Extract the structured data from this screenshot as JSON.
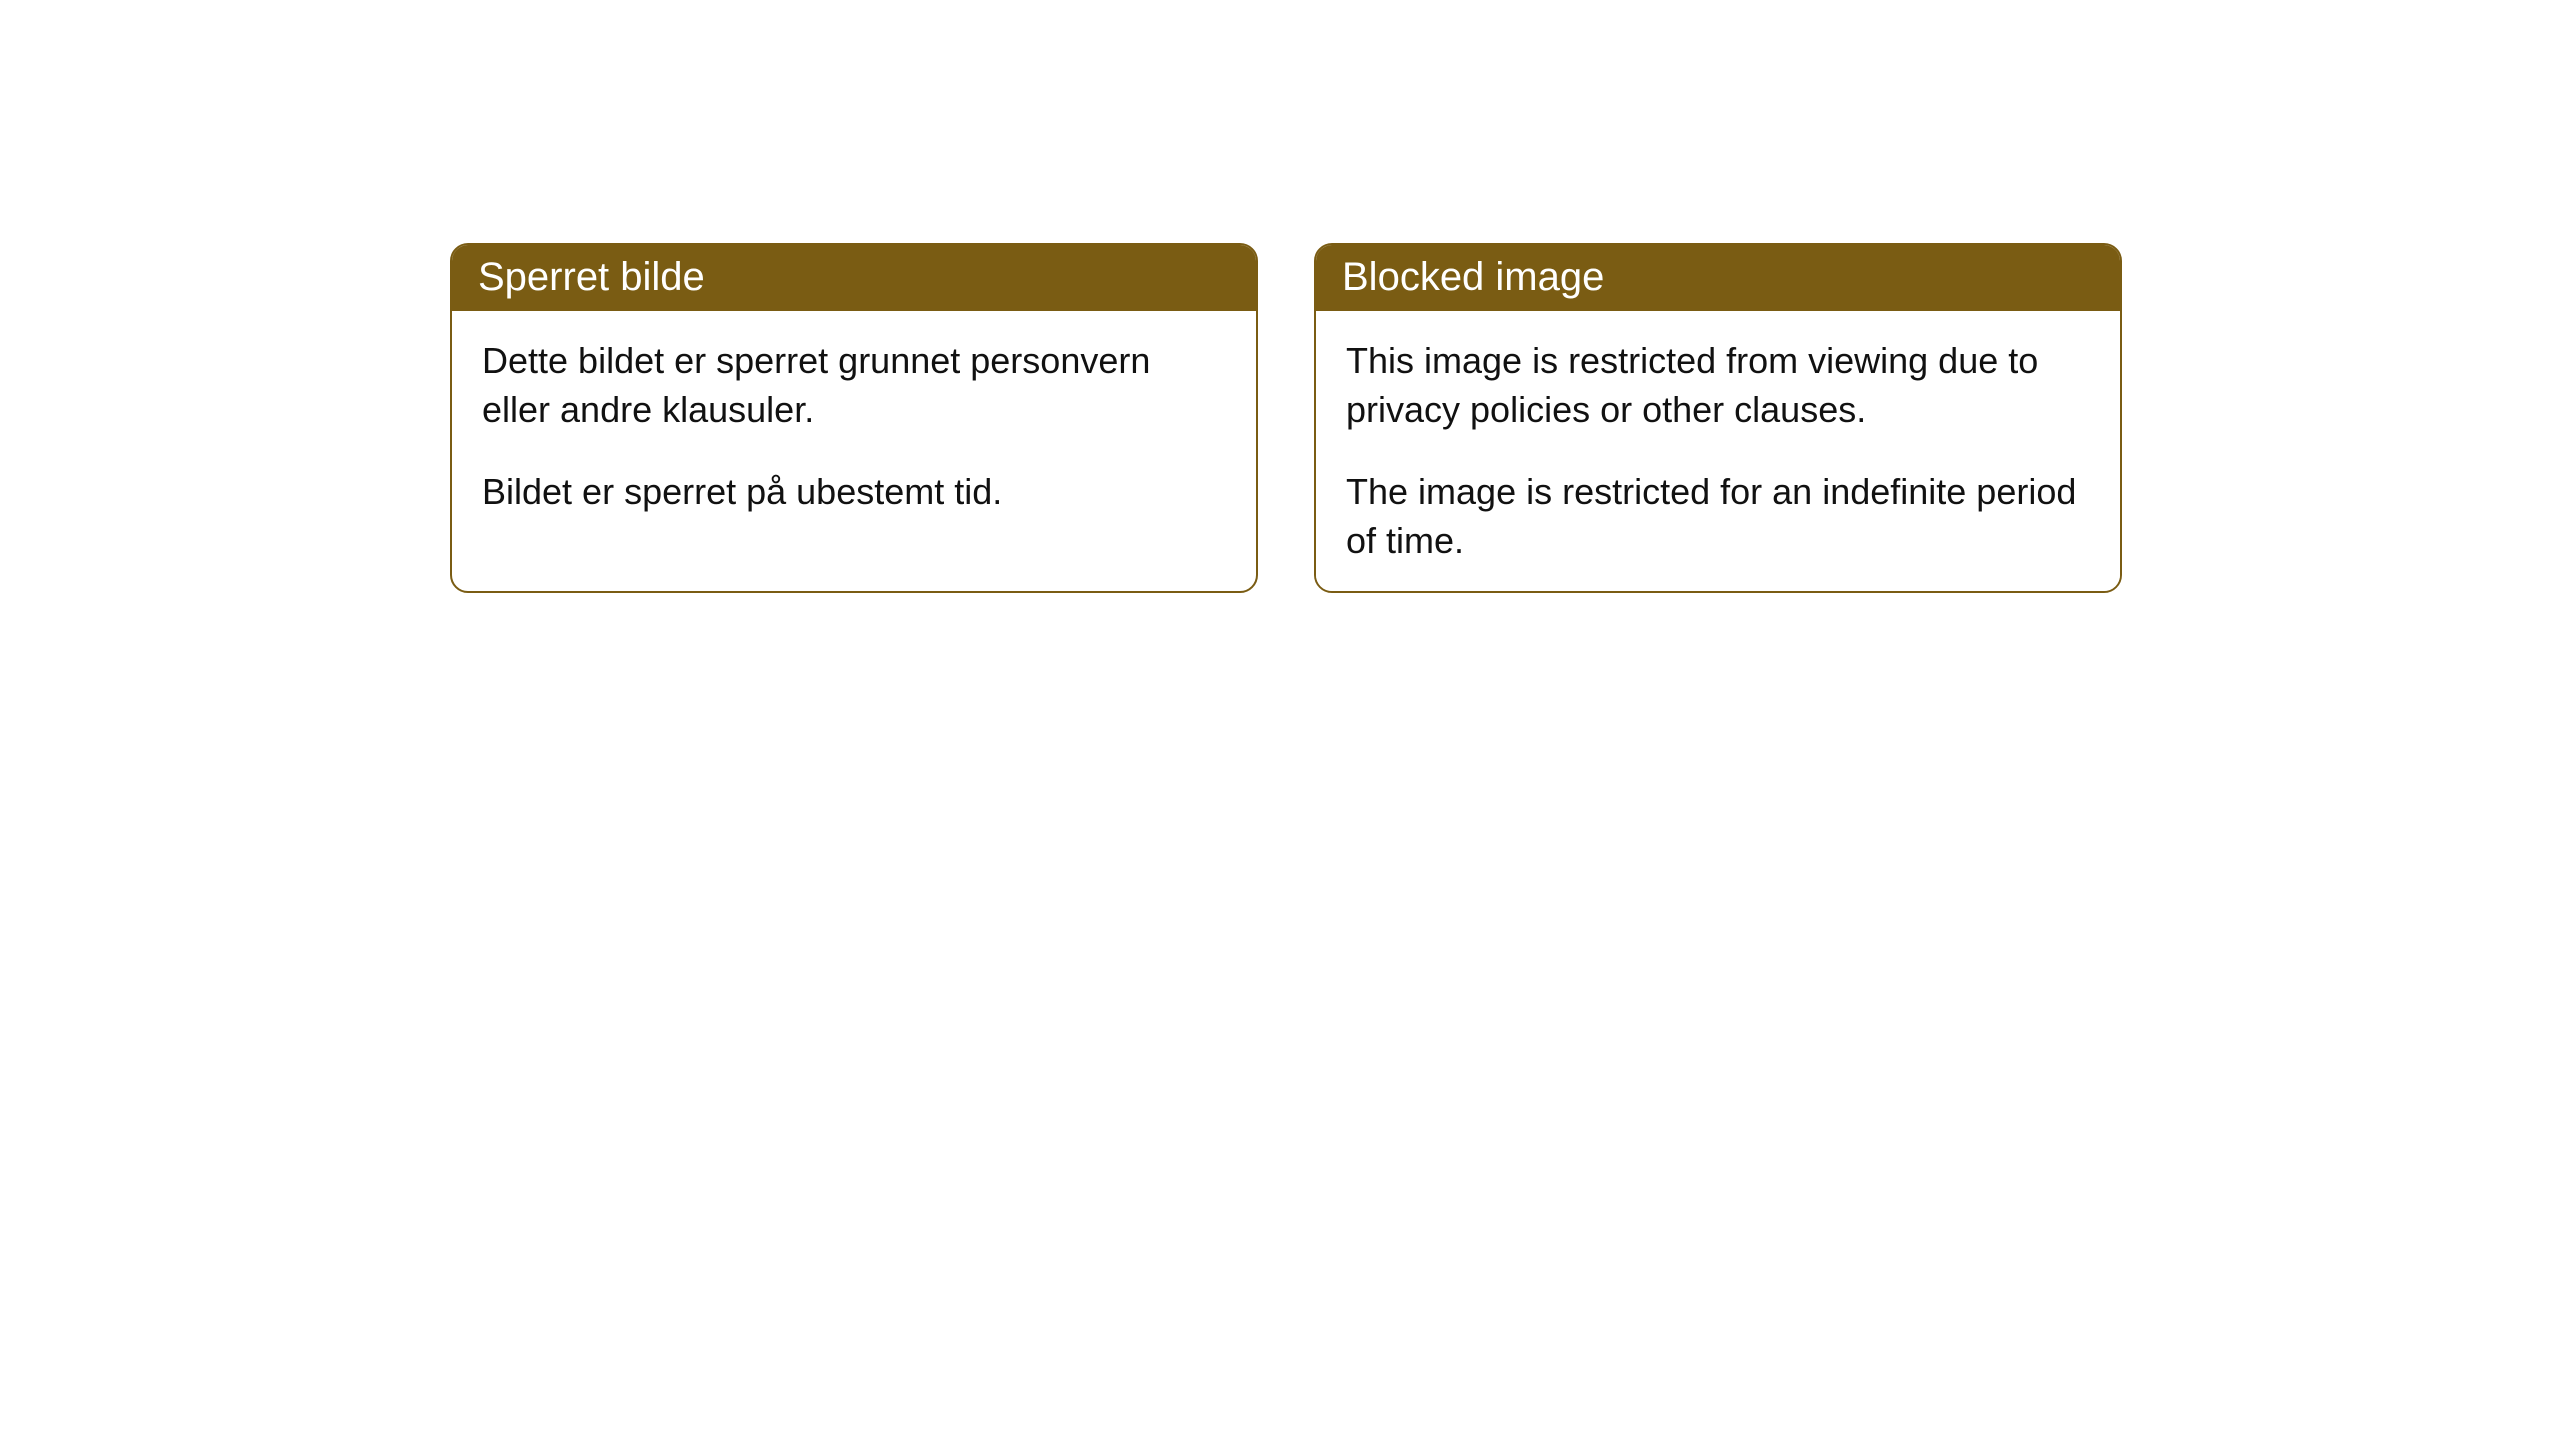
{
  "cards": [
    {
      "title": "Sperret bilde",
      "paragraph1": "Dette bildet er sperret grunnet personvern eller andre klausuler.",
      "paragraph2": "Bildet er sperret på ubestemt tid."
    },
    {
      "title": "Blocked image",
      "paragraph1": "This image is restricted from viewing due to privacy policies or other clauses.",
      "paragraph2": "The image is restricted for an indefinite period of time."
    }
  ],
  "style": {
    "header_bg": "#7a5c13",
    "header_text_color": "#ffffff",
    "border_color": "#7a5c13",
    "body_bg": "#ffffff",
    "text_color": "#111111",
    "border_radius": 18,
    "header_fontsize": 40,
    "body_fontsize": 36
  }
}
